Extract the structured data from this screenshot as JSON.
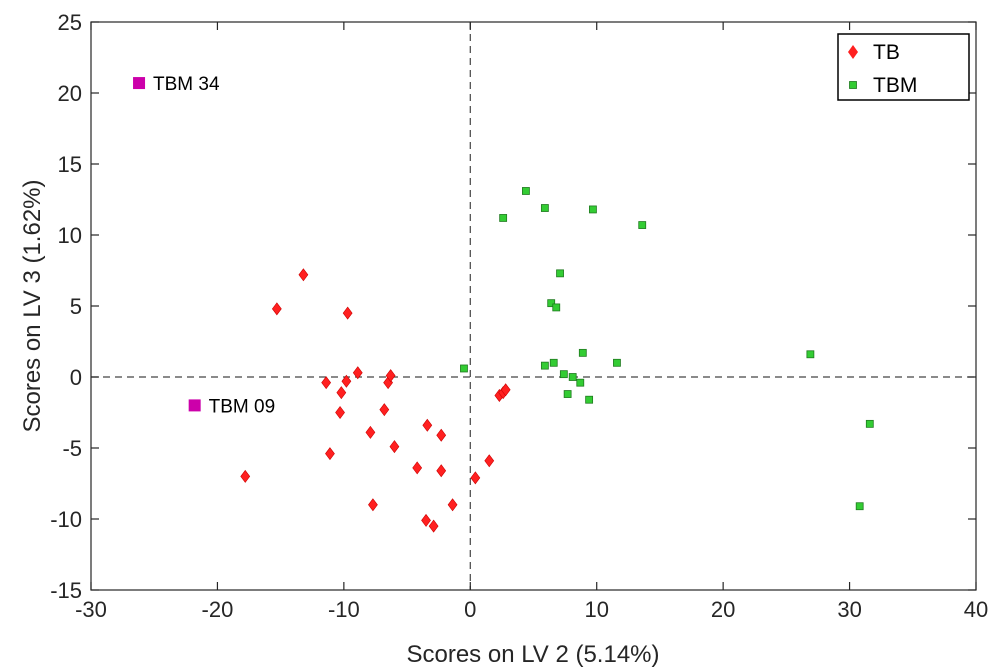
{
  "colors": {
    "TB": "#ff2020",
    "TBM": "#33cc33",
    "outlier": "#cc00aa",
    "axis": "#262626"
  },
  "chart_data": {
    "type": "scatter",
    "xlabel": "Scores on LV 2 (5.14%)",
    "ylabel": "Scores on LV 3 (1.62%)",
    "xlim": [
      -30,
      40
    ],
    "ylim": [
      -15,
      25
    ],
    "xticks": [
      "-30",
      "-20",
      "-10",
      "0",
      "10",
      "20",
      "30",
      "40"
    ],
    "yticks": [
      "-15",
      "-10",
      "-5",
      "0",
      "5",
      "10",
      "15",
      "20",
      "25"
    ],
    "grid": false,
    "legend_position": "top-right",
    "reference_lines": {
      "x": 0,
      "y": 0,
      "style": "dashed"
    },
    "series": [
      {
        "name": "TB",
        "marker": "diamond",
        "points": [
          [
            -15.3,
            4.8
          ],
          [
            -13.2,
            7.2
          ],
          [
            -9.7,
            4.5
          ],
          [
            -17.8,
            -7.0
          ],
          [
            -11.4,
            -0.4
          ],
          [
            -10.2,
            -1.1
          ],
          [
            -9.8,
            -0.3
          ],
          [
            -8.9,
            0.3
          ],
          [
            -10.3,
            -2.5
          ],
          [
            -11.1,
            -5.4
          ],
          [
            -7.9,
            -3.9
          ],
          [
            -6.8,
            -2.3
          ],
          [
            -6.5,
            -0.4
          ],
          [
            -6.3,
            0.1
          ],
          [
            -6.0,
            -4.9
          ],
          [
            -7.7,
            -9.0
          ],
          [
            -4.2,
            -6.4
          ],
          [
            -3.4,
            -3.4
          ],
          [
            -2.3,
            -4.1
          ],
          [
            -2.3,
            -6.6
          ],
          [
            -3.5,
            -10.1
          ],
          [
            -2.9,
            -10.5
          ],
          [
            -1.4,
            -9.0
          ],
          [
            0.4,
            -7.1
          ],
          [
            1.5,
            -5.9
          ],
          [
            2.3,
            -1.3
          ],
          [
            2.6,
            -1.1
          ],
          [
            2.8,
            -0.9
          ]
        ]
      },
      {
        "name": "TBM",
        "marker": "square",
        "points": [
          [
            4.4,
            13.1
          ],
          [
            2.6,
            11.2
          ],
          [
            5.9,
            11.9
          ],
          [
            9.7,
            11.8
          ],
          [
            13.6,
            10.7
          ],
          [
            7.1,
            7.3
          ],
          [
            6.4,
            5.2
          ],
          [
            6.8,
            4.9
          ],
          [
            -0.5,
            0.6
          ],
          [
            5.9,
            0.8
          ],
          [
            6.6,
            1.0
          ],
          [
            7.4,
            0.2
          ],
          [
            8.1,
            0.0
          ],
          [
            8.7,
            -0.4
          ],
          [
            8.9,
            1.7
          ],
          [
            7.7,
            -1.2
          ],
          [
            9.4,
            -1.6
          ],
          [
            11.6,
            1.0
          ],
          [
            26.9,
            1.6
          ],
          [
            31.6,
            -3.3
          ],
          [
            30.8,
            -9.1
          ]
        ]
      }
    ],
    "highlighted_points": [
      {
        "label": "TBM 34",
        "x": -26.2,
        "y": 20.7
      },
      {
        "label": "TBM 09",
        "x": -21.8,
        "y": -2.0
      }
    ]
  }
}
